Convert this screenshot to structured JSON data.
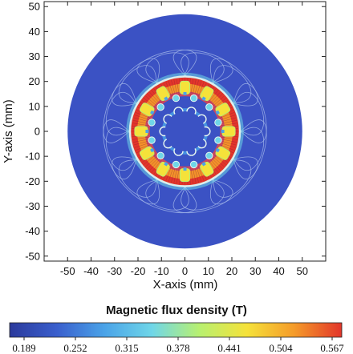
{
  "chart_data": {
    "type": "heatmap",
    "title": "",
    "xlabel": "X-axis  (mm)",
    "ylabel": "Y-axis  (mm)",
    "xlim": [
      -60,
      60
    ],
    "ylim": [
      -52,
      52
    ],
    "x_ticks": [
      -50,
      -40,
      -30,
      -20,
      -10,
      0,
      10,
      20,
      30,
      40,
      50
    ],
    "y_ticks": [
      -50,
      -40,
      -30,
      -20,
      -10,
      0,
      10,
      20,
      30,
      40,
      50
    ],
    "grid": false,
    "domain_radius_mm": 50,
    "stator": {
      "outer_radius_mm": 23,
      "inner_radius_mm": 15,
      "slots": 12
    },
    "rotor": {
      "outer_radius_mm": 8.5,
      "teeth": 10
    },
    "colorbar": {
      "title": "Magnetic flux density (T)",
      "min": 0.189,
      "max": 0.567,
      "ticks": [
        "0.189",
        "0.252",
        "0.315",
        "0.378",
        "0.441",
        "0.504",
        "0.567"
      ],
      "colors": [
        "#2b3a9c",
        "#3a5fcd",
        "#4aa3e8",
        "#6fd6e8",
        "#b8f070",
        "#f5e23a",
        "#f59b2a",
        "#e2352a"
      ]
    },
    "background_value_T": 0.189,
    "peak_region": "stator yoke"
  }
}
